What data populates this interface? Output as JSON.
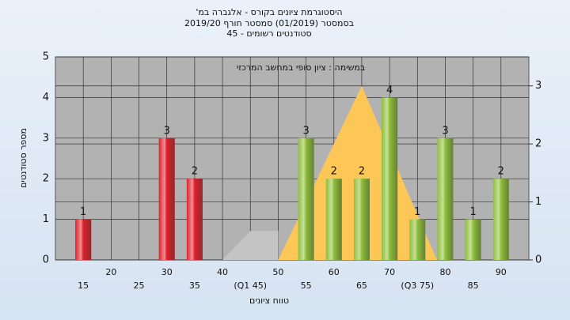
{
  "chart_data": {
    "type": "bar",
    "title": "היסטוגרמת ציונים בקורס - אלגברה במ'",
    "subtitle": "בסמסטר (01/2019) סמסטר חורף 2019/20",
    "subtitle2": "סטודנטים רשומים - 45",
    "annotation": "במשימה : ציון סופי במחשב המרכזי",
    "x_label": "טווח ציונים",
    "y_label": "מספר סטודנטים",
    "x": [
      15,
      20,
      25,
      30,
      35,
      40,
      45,
      50,
      55,
      60,
      65,
      70,
      75,
      80,
      85,
      90
    ],
    "values": [
      1,
      null,
      null,
      3,
      2,
      null,
      null,
      null,
      3,
      2,
      2,
      4,
      1,
      3,
      1,
      2
    ],
    "bar_colors": [
      "#e0202a",
      null,
      null,
      "#e0202a",
      "#e0202a",
      null,
      null,
      null,
      "#8fbf3a",
      "#8fbf3a",
      "#8fbf3a",
      "#8fbf3a",
      "#8fbf3a",
      "#8fbf3a",
      "#8fbf3a",
      "#8fbf3a"
    ],
    "areas": [
      {
        "color": "#c4c4c4",
        "x": [
          40,
          45,
          50
        ],
        "values": [
          0,
          0.5,
          0.5
        ]
      },
      {
        "color": "#fcc757",
        "x": [
          50,
          65,
          78.5
        ],
        "values": [
          0,
          3,
          0
        ]
      }
    ],
    "xlim": [
      10,
      95
    ],
    "xticks": [
      15,
      20,
      25,
      30,
      35,
      40,
      {
        "value": 45,
        "label": "(Q1 45)"
      },
      50,
      55,
      60,
      65,
      70,
      {
        "value": 75,
        "label": "(Q3 75)"
      },
      80,
      85,
      90
    ],
    "ylim": [
      0,
      5
    ],
    "yticks": [
      0,
      1,
      2,
      3,
      4,
      5
    ],
    "y2lim": [
      0,
      3.5
    ],
    "y2ticks": [
      0,
      1,
      2,
      3
    ],
    "grid": true
  }
}
